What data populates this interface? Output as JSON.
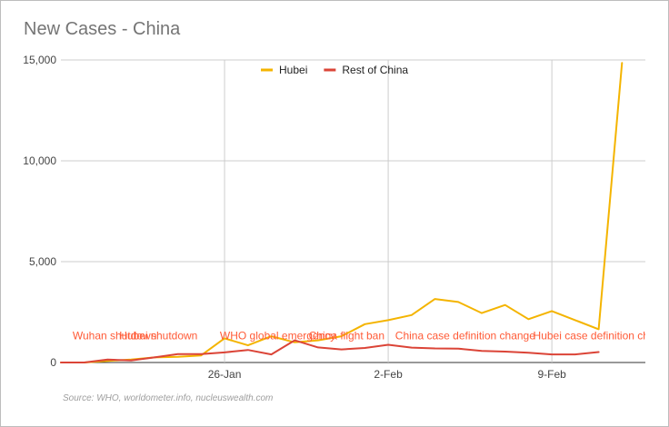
{
  "title": "New Cases - China",
  "source": "Source: WHO, worldometer.info, nucleuswealth.com",
  "legend": [
    {
      "label": "Hubei",
      "color": "#f4b400"
    },
    {
      "label": "Rest of China",
      "color": "#db4437"
    }
  ],
  "annotation_color": "#ff5a36",
  "chart_data": {
    "type": "line",
    "title": "New Cases - China",
    "xlabel": "",
    "ylabel": "",
    "x": [
      "19-Jan",
      "20-Jan",
      "21-Jan",
      "22-Jan",
      "23-Jan",
      "24-Jan",
      "25-Jan",
      "26-Jan",
      "27-Jan",
      "28-Jan",
      "29-Jan",
      "30-Jan",
      "31-Jan",
      "1-Feb",
      "2-Feb",
      "3-Feb",
      "4-Feb",
      "5-Feb",
      "6-Feb",
      "7-Feb",
      "8-Feb",
      "9-Feb",
      "10-Feb",
      "11-Feb",
      "12-Feb",
      "13-Feb"
    ],
    "xticks": [
      {
        "label": "26-Jan",
        "index": 7
      },
      {
        "label": "2-Feb",
        "index": 14
      },
      {
        "label": "9-Feb",
        "index": 21
      }
    ],
    "yticks": [
      {
        "label": "0",
        "value": 0
      },
      {
        "label": "5,000",
        "value": 5000
      },
      {
        "label": "10,000",
        "value": 10000
      },
      {
        "label": "15,000",
        "value": 15000
      }
    ],
    "ylim": [
      0,
      15000
    ],
    "grid": true,
    "legend_position": "top",
    "series": [
      {
        "name": "Hubei",
        "color": "#f4b400",
        "values": [
          0,
          0,
          80,
          150,
          250,
          280,
          350,
          1200,
          850,
          1300,
          1000,
          1100,
          1300,
          1900,
          2100,
          2350,
          3150,
          3000,
          2450,
          2850,
          2150,
          2550,
          2100,
          1650,
          14850,
          null
        ]
      },
      {
        "name": "Rest of China",
        "color": "#db4437",
        "values": [
          0,
          0,
          150,
          100,
          250,
          420,
          420,
          500,
          620,
          400,
          1100,
          750,
          650,
          720,
          880,
          740,
          700,
          690,
          570,
          540,
          480,
          400,
          400,
          520,
          null,
          null
        ]
      }
    ],
    "annotations": [
      {
        "text": "Wuhan shutdown",
        "index": 0.5,
        "value": 250
      },
      {
        "text": "Hubei shutdown",
        "index": 2.5,
        "value": 250
      },
      {
        "text": "WHO global emergency",
        "index": 6.8,
        "value": 250
      },
      {
        "text": "China flight ban",
        "index": 10.6,
        "value": 250
      },
      {
        "text": "China case definition change",
        "index": 14.3,
        "value": 250
      },
      {
        "text": "Hubei case definition change",
        "index": 20.2,
        "value": 250
      }
    ]
  }
}
